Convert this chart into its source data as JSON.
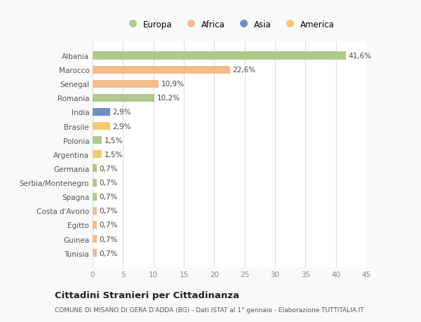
{
  "countries": [
    "Albania",
    "Marocco",
    "Senegal",
    "Romania",
    "India",
    "Brasile",
    "Polonia",
    "Argentina",
    "Germania",
    "Serbia/Montenegro",
    "Spagna",
    "Costa d'Avorio",
    "Egitto",
    "Guinea",
    "Tunisia"
  ],
  "values": [
    41.6,
    22.6,
    10.9,
    10.2,
    2.9,
    2.9,
    1.5,
    1.5,
    0.7,
    0.7,
    0.7,
    0.7,
    0.7,
    0.7,
    0.7
  ],
  "labels": [
    "41,6%",
    "22,6%",
    "10,9%",
    "10,2%",
    "2,9%",
    "2,9%",
    "1,5%",
    "1,5%",
    "0,7%",
    "0,7%",
    "0,7%",
    "0,7%",
    "0,7%",
    "0,7%",
    "0,7%"
  ],
  "colors": [
    "#aec98c",
    "#f2bc8d",
    "#f2bc8d",
    "#aec98c",
    "#6e8fc2",
    "#f5ca6e",
    "#aec98c",
    "#f5ca6e",
    "#aec98c",
    "#aec98c",
    "#aec98c",
    "#f2bc8d",
    "#f2bc8d",
    "#f2bc8d",
    "#f2bc8d"
  ],
  "legend_labels": [
    "Europa",
    "Africa",
    "Asia",
    "America"
  ],
  "legend_colors": [
    "#aec98c",
    "#f2bc8d",
    "#6e8fc2",
    "#f5ca6e"
  ],
  "title": "Cittadini Stranieri per Cittadinanza",
  "subtitle": "COMUNE DI MISANO DI GERA D'ADDA (BG) - Dati ISTAT al 1° gennaio - Elaborazione TUTTITALIA.IT",
  "xlim": [
    0,
    45
  ],
  "xticks": [
    0,
    5,
    10,
    15,
    20,
    25,
    30,
    35,
    40,
    45
  ],
  "background_color": "#f9f9f9",
  "bar_background": "#ffffff",
  "grid_color": "#dddddd"
}
